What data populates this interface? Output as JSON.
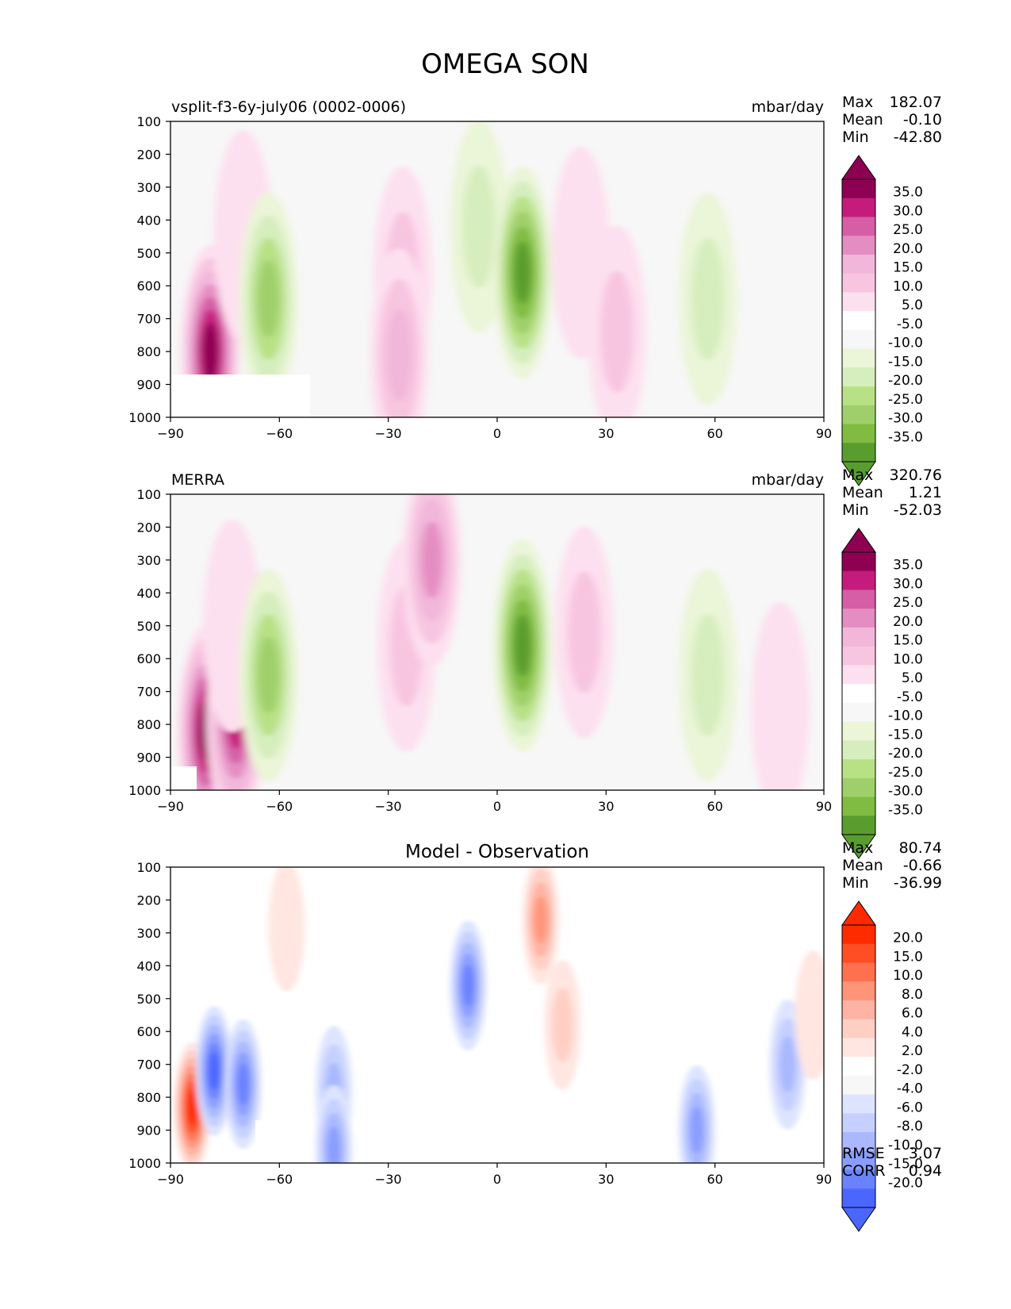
{
  "figure": {
    "title": "OMEGA SON"
  },
  "colors": {
    "bg": "#f7f7f7",
    "model_pos": [
      "#fde0ef",
      "#f8c5e0",
      "#f1b6da",
      "#e48dc2",
      "#d55ea6",
      "#c51b7d",
      "#8e0152"
    ],
    "model_neg": [
      "#ebf5d8",
      "#d6eebd",
      "#b8e186",
      "#9fcf6a",
      "#7fbc41",
      "#5a9d2f",
      "#3b7d22",
      "#276419"
    ],
    "diff_pos": [
      "#ffe6e1",
      "#ffcfc4",
      "#ffb3a2",
      "#ff9479",
      "#ff714e",
      "#ff4d24",
      "#ff2a00"
    ],
    "diff_neg": [
      "#dde4ff",
      "#c5d0ff",
      "#a9b8ff",
      "#8a9dff",
      "#6b82ff",
      "#4b66ff",
      "#2a48ff",
      "#0024ff"
    ]
  },
  "chart_data": [
    {
      "type": "heatmap",
      "title": "vsplit-f3-6y-july06 (0002-0006)",
      "units": "mbar/day",
      "stats": {
        "max_label": "Max",
        "mean_label": "Mean",
        "min_label": "Min",
        "max": "182.07",
        "mean": "-0.10",
        "min": "-42.80"
      },
      "x_ticks": [
        "−90",
        "−60",
        "−30",
        "0",
        "30",
        "60",
        "90"
      ],
      "y_ticks": [
        "100",
        "200",
        "300",
        "400",
        "500",
        "600",
        "700",
        "800",
        "900",
        "1000"
      ],
      "xlim": [
        -90,
        90
      ],
      "ylim": [
        1000,
        100
      ],
      "colorbar_ticks": [
        "35.0",
        "30.0",
        "25.0",
        "20.0",
        "15.0",
        "10.0",
        "5.0",
        "-5.0",
        "-10.0",
        "-15.0",
        "-20.0",
        "-25.0",
        "-30.0",
        "-35.0"
      ],
      "features": [
        {
          "lat": -79,
          "p": 800,
          "value": 40
        },
        {
          "lat": -70,
          "p": 450,
          "value": 6
        },
        {
          "lat": -63,
          "p": 640,
          "value": -20
        },
        {
          "lat": -26,
          "p": 560,
          "value": 14
        },
        {
          "lat": -27,
          "p": 810,
          "value": 19
        },
        {
          "lat": -5,
          "p": 420,
          "value": -14
        },
        {
          "lat": 7,
          "p": 560,
          "value": -34
        },
        {
          "lat": 23,
          "p": 500,
          "value": 8
        },
        {
          "lat": 33,
          "p": 740,
          "value": 12
        },
        {
          "lat": 58,
          "p": 640,
          "value": -12
        }
      ]
    },
    {
      "type": "heatmap",
      "title": "MERRA",
      "units": "mbar/day",
      "stats": {
        "max_label": "Max",
        "mean_label": "Mean",
        "min_label": "Min",
        "max": "320.76",
        "mean": "1.21",
        "min": "-52.03"
      },
      "x_ticks": [
        "−90",
        "−60",
        "−30",
        "0",
        "30",
        "60",
        "90"
      ],
      "y_ticks": [
        "100",
        "200",
        "300",
        "400",
        "500",
        "600",
        "700",
        "800",
        "900",
        "1000"
      ],
      "xlim": [
        -90,
        90
      ],
      "ylim": [
        1000,
        100
      ],
      "colorbar_ticks": [
        "35.0",
        "30.0",
        "25.0",
        "20.0",
        "15.0",
        "10.0",
        "5.0",
        "-5.0",
        "-10.0",
        "-15.0",
        "-20.0",
        "-25.0",
        "-30.0",
        "-35.0"
      ],
      "features": [
        {
          "lat": -80,
          "p": 820,
          "value": 40
        },
        {
          "lat": -72,
          "p": 780,
          "value": 32
        },
        {
          "lat": -73,
          "p": 500,
          "value": 8
        },
        {
          "lat": -63,
          "p": 650,
          "value": -20
        },
        {
          "lat": -25,
          "p": 560,
          "value": 11
        },
        {
          "lat": -18,
          "p": 300,
          "value": 22
        },
        {
          "lat": 7,
          "p": 560,
          "value": -34
        },
        {
          "lat": 24,
          "p": 520,
          "value": 13
        },
        {
          "lat": 58,
          "p": 650,
          "value": -10
        },
        {
          "lat": 78,
          "p": 750,
          "value": 9
        }
      ]
    },
    {
      "type": "heatmap",
      "title": "Model - Observation",
      "stats": {
        "max_label": "Max",
        "mean_label": "Mean",
        "min_label": "Min",
        "max": "80.74",
        "mean": "-0.66",
        "min": "-36.99"
      },
      "metrics": {
        "rmse_label": "RMSE",
        "rmse": "3.07",
        "corr_label": "CORR",
        "corr": "0.94"
      },
      "x_ticks": [
        "−90",
        "−60",
        "−30",
        "0",
        "30",
        "60",
        "90"
      ],
      "y_ticks": [
        "100",
        "200",
        "300",
        "400",
        "500",
        "600",
        "700",
        "800",
        "900",
        "1000"
      ],
      "xlim": [
        -90,
        90
      ],
      "ylim": [
        1000,
        100
      ],
      "colorbar_ticks": [
        "20.0",
        "15.0",
        "10.0",
        "8.0",
        "6.0",
        "4.0",
        "2.0",
        "-2.0",
        "-4.0",
        "-6.0",
        "-8.0",
        "-10.0",
        "-15.0",
        "-20.0"
      ],
      "features": [
        {
          "lat": -84,
          "p": 830,
          "value": 22
        },
        {
          "lat": -78,
          "p": 720,
          "value": -16
        },
        {
          "lat": -70,
          "p": 760,
          "value": -12
        },
        {
          "lat": -45,
          "p": 780,
          "value": -6
        },
        {
          "lat": -45,
          "p": 960,
          "value": -9
        },
        {
          "lat": -8,
          "p": 460,
          "value": -10
        },
        {
          "lat": 12,
          "p": 260,
          "value": 8
        },
        {
          "lat": 18,
          "p": 580,
          "value": 5
        },
        {
          "lat": 55,
          "p": 900,
          "value": -8
        },
        {
          "lat": 80,
          "p": 700,
          "value": -7
        },
        {
          "lat": 87,
          "p": 550,
          "value": 3
        },
        {
          "lat": -58,
          "p": 280,
          "value": 2
        }
      ]
    }
  ]
}
